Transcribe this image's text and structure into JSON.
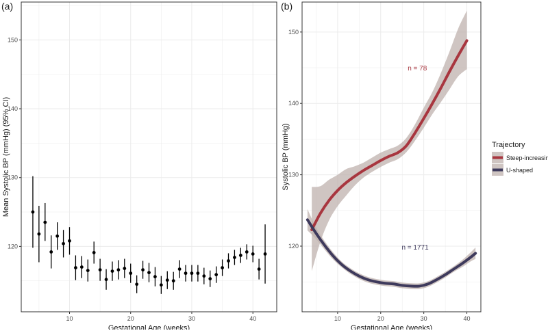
{
  "colors": {
    "grid": "#ebebeb",
    "panel_border": "#333333",
    "text": "#4d4d4d",
    "title_text": "#1a1a1a",
    "ribbon": "#bfb1ad",
    "steep": "#a8363f",
    "ushaped": "#3e3a5c",
    "point": "#000000"
  },
  "chart_data": [
    {
      "type": "scatter",
      "panel_label": "(a)",
      "xlabel": "Gestational Age (weeks)",
      "ylabel": "Mean Systolic BP (mmHg) (95% CI)",
      "xlim": [
        2.1,
        43.9
      ],
      "ylim": [
        110.5,
        155.5
      ],
      "x_ticks": [
        10,
        20,
        30,
        40
      ],
      "x_tick_labels": [
        "10",
        "20",
        "30",
        "40"
      ],
      "y_ticks": [
        120,
        130,
        140,
        150
      ],
      "y_tick_labels": [
        "120",
        "130",
        "140",
        "150"
      ],
      "points": [
        {
          "x": 4,
          "y": 125.0,
          "lo": 119.8,
          "hi": 130.2
        },
        {
          "x": 5,
          "y": 121.8,
          "lo": 117.7,
          "hi": 125.9
        },
        {
          "x": 6,
          "y": 123.5,
          "lo": 120.8,
          "hi": 126.3
        },
        {
          "x": 7,
          "y": 119.2,
          "lo": 116.8,
          "hi": 121.6
        },
        {
          "x": 8,
          "y": 121.5,
          "lo": 119.5,
          "hi": 123.5
        },
        {
          "x": 9,
          "y": 120.4,
          "lo": 118.4,
          "hi": 122.4
        },
        {
          "x": 10,
          "y": 120.8,
          "lo": 118.8,
          "hi": 122.8
        },
        {
          "x": 11,
          "y": 116.9,
          "lo": 115.1,
          "hi": 118.7
        },
        {
          "x": 12,
          "y": 117.0,
          "lo": 115.4,
          "hi": 118.6
        },
        {
          "x": 13,
          "y": 116.5,
          "lo": 114.9,
          "hi": 118.1
        },
        {
          "x": 14,
          "y": 119.1,
          "lo": 117.5,
          "hi": 120.7
        },
        {
          "x": 15,
          "y": 116.6,
          "lo": 115.0,
          "hi": 118.2
        },
        {
          "x": 16,
          "y": 115.2,
          "lo": 113.7,
          "hi": 116.7
        },
        {
          "x": 17,
          "y": 116.4,
          "lo": 115.0,
          "hi": 117.8
        },
        {
          "x": 18,
          "y": 116.6,
          "lo": 115.2,
          "hi": 118.0
        },
        {
          "x": 19,
          "y": 116.8,
          "lo": 115.4,
          "hi": 118.2
        },
        {
          "x": 20,
          "y": 116.1,
          "lo": 114.7,
          "hi": 117.5
        },
        {
          "x": 21,
          "y": 114.5,
          "lo": 113.2,
          "hi": 115.8
        },
        {
          "x": 22,
          "y": 116.6,
          "lo": 115.3,
          "hi": 117.9
        },
        {
          "x": 23,
          "y": 116.2,
          "lo": 114.8,
          "hi": 117.6
        },
        {
          "x": 24,
          "y": 115.6,
          "lo": 114.2,
          "hi": 117.0
        },
        {
          "x": 25,
          "y": 114.4,
          "lo": 113.1,
          "hi": 115.7
        },
        {
          "x": 26,
          "y": 115.1,
          "lo": 113.8,
          "hi": 116.4
        },
        {
          "x": 27,
          "y": 115.0,
          "lo": 113.7,
          "hi": 116.3
        },
        {
          "x": 28,
          "y": 116.7,
          "lo": 115.4,
          "hi": 118.0
        },
        {
          "x": 29,
          "y": 116.1,
          "lo": 114.9,
          "hi": 117.3
        },
        {
          "x": 30,
          "y": 116.1,
          "lo": 114.9,
          "hi": 117.3
        },
        {
          "x": 31,
          "y": 116.1,
          "lo": 114.9,
          "hi": 117.3
        },
        {
          "x": 32,
          "y": 115.7,
          "lo": 114.5,
          "hi": 116.9
        },
        {
          "x": 33,
          "y": 115.3,
          "lo": 114.1,
          "hi": 116.5
        },
        {
          "x": 34,
          "y": 115.9,
          "lo": 114.7,
          "hi": 117.1
        },
        {
          "x": 35,
          "y": 116.9,
          "lo": 115.7,
          "hi": 118.1
        },
        {
          "x": 36,
          "y": 117.9,
          "lo": 116.8,
          "hi": 119.0
        },
        {
          "x": 37,
          "y": 118.4,
          "lo": 117.3,
          "hi": 119.5
        },
        {
          "x": 38,
          "y": 118.7,
          "lo": 117.6,
          "hi": 119.8
        },
        {
          "x": 39,
          "y": 119.2,
          "lo": 118.1,
          "hi": 120.3
        },
        {
          "x": 40,
          "y": 118.9,
          "lo": 117.7,
          "hi": 120.1
        },
        {
          "x": 41,
          "y": 116.7,
          "lo": 115.2,
          "hi": 118.2
        },
        {
          "x": 42,
          "y": 118.9,
          "lo": 114.6,
          "hi": 123.2
        }
      ]
    },
    {
      "type": "line",
      "panel_label": "(b)",
      "xlabel": "Gestational Age (weeks)",
      "ylabel": "Systolic BP (mmHg)",
      "xlim": [
        1.75,
        43.25
      ],
      "ylim": [
        110.8,
        154.2
      ],
      "x_ticks": [
        10,
        20,
        30,
        40
      ],
      "x_tick_labels": [
        "10",
        "20",
        "30",
        "40"
      ],
      "y_ticks": [
        120,
        130,
        140,
        150
      ],
      "y_tick_labels": [
        "120",
        "130",
        "140",
        "150"
      ],
      "legend": {
        "title": "Trajectory",
        "position": "right",
        "entries": [
          "Steep-increasing",
          "U-shaped"
        ]
      },
      "annotations": [
        {
          "text": "n = 78",
          "x": 28.5,
          "y": 145.0,
          "series": "Steep-increasing"
        },
        {
          "text": "n = 1771",
          "x": 28.0,
          "y": 119.9,
          "series": "U-shaped"
        }
      ],
      "series": [
        {
          "name": "Steep-increasing",
          "x": [
            4,
            6,
            8,
            10,
            12,
            14,
            16,
            18,
            20,
            22,
            24,
            26,
            28,
            30,
            32,
            34,
            36,
            38,
            40
          ],
          "y": [
            122.3,
            124.6,
            126.4,
            127.8,
            128.9,
            129.8,
            130.6,
            131.3,
            132.0,
            132.6,
            133.1,
            134.1,
            135.9,
            137.9,
            140.0,
            142.2,
            144.5,
            146.7,
            148.8
          ],
          "lo": [
            116.5,
            120.6,
            123.6,
            125.6,
            127.1,
            128.5,
            129.6,
            130.4,
            131.1,
            131.7,
            132.2,
            133.2,
            134.8,
            136.6,
            138.5,
            140.2,
            142.0,
            143.8,
            144.8
          ],
          "hi": [
            128.3,
            128.4,
            129.3,
            130.0,
            130.8,
            131.2,
            131.7,
            132.4,
            133.1,
            133.6,
            134.1,
            135.2,
            137.1,
            139.4,
            141.6,
            144.3,
            147.3,
            150.5,
            153.0
          ]
        },
        {
          "name": "U-shaped",
          "x": [
            3,
            5,
            7,
            9,
            11,
            13,
            15,
            17,
            19,
            21,
            23,
            25,
            27,
            29,
            31,
            33,
            35,
            37,
            39,
            41,
            42
          ],
          "y": [
            123.7,
            121.8,
            120.1,
            118.6,
            117.4,
            116.5,
            115.8,
            115.3,
            115.0,
            114.8,
            114.7,
            114.5,
            114.4,
            114.4,
            114.7,
            115.3,
            116.0,
            116.8,
            117.6,
            118.5,
            119.0
          ],
          "lo": [
            122.2,
            121.0,
            119.5,
            118.1,
            117.0,
            116.1,
            115.4,
            114.9,
            114.6,
            114.4,
            114.3,
            114.1,
            114.0,
            114.0,
            114.3,
            114.9,
            115.6,
            116.4,
            117.1,
            117.9,
            118.2
          ],
          "hi": [
            125.2,
            122.6,
            120.7,
            119.1,
            117.8,
            116.9,
            116.2,
            115.7,
            115.4,
            115.2,
            115.1,
            114.9,
            114.8,
            114.8,
            115.1,
            115.7,
            116.4,
            117.2,
            118.1,
            119.2,
            119.8
          ]
        }
      ]
    }
  ]
}
